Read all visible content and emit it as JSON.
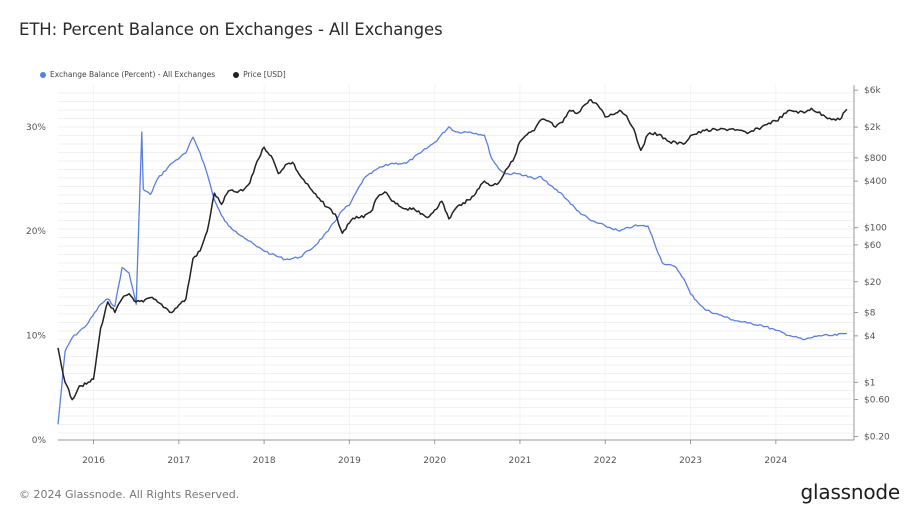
{
  "title": "ETH: Percent Balance on Exchanges - All Exchanges",
  "footer": "© 2024 Glassnode. All Rights Reserved.",
  "brand": "glassnode",
  "colors": {
    "balance": "#5b7fe0",
    "price": "#222222",
    "grid": "#eeeeee"
  },
  "chart_data": {
    "type": "line",
    "legend": [
      {
        "label": "Exchange Balance (Percent) - All Exchanges",
        "color": "#5b7fe0"
      },
      {
        "label": "Price [USD]",
        "color": "#222222"
      }
    ],
    "legend_position": "top-left",
    "x_range": [
      "2015-08",
      "2024-12"
    ],
    "x_ticks": [
      "2016",
      "2017",
      "2018",
      "2019",
      "2020",
      "2021",
      "2022",
      "2023",
      "2024"
    ],
    "y_left": {
      "label": "",
      "ticks": [
        "0%",
        "10%",
        "20%",
        "30%"
      ],
      "tick_values": [
        0,
        10,
        20,
        30
      ],
      "range": [
        0,
        34
      ]
    },
    "y_right": {
      "label": "",
      "scale": "log",
      "ticks": [
        "$0.20",
        "$0.60",
        "$1",
        "$4",
        "$8",
        "$20",
        "$60",
        "$100",
        "$400",
        "$800",
        "$2k",
        "$6k"
      ],
      "tick_values": [
        0.2,
        0.6,
        1,
        4,
        8,
        20,
        60,
        100,
        400,
        800,
        2000,
        6000
      ]
    },
    "grid": true,
    "series": [
      {
        "name": "Exchange Balance (Percent) - All Exchanges",
        "axis": "left",
        "x": [
          "2015-08",
          "2015-09",
          "2015-10",
          "2015-12",
          "2016-02",
          "2016-03",
          "2016-04",
          "2016-05",
          "2016-06",
          "2016-07",
          "2016-07-25",
          "2016-08",
          "2016-09",
          "2016-10",
          "2016-12",
          "2017-02",
          "2017-03",
          "2017-04",
          "2017-05",
          "2017-06",
          "2017-07",
          "2017-08",
          "2017-09",
          "2017-10",
          "2017-12",
          "2018-02",
          "2018-04",
          "2018-06",
          "2018-08",
          "2018-10",
          "2018-12",
          "2019-01",
          "2019-03",
          "2019-05",
          "2019-07",
          "2019-09",
          "2019-11",
          "2020-01",
          "2020-03",
          "2020-04",
          "2020-06",
          "2020-08",
          "2020-09",
          "2020-10",
          "2020-11",
          "2021-01",
          "2021-03",
          "2021-04",
          "2021-05",
          "2021-07",
          "2021-09",
          "2021-11",
          "2022-01",
          "2022-03",
          "2022-05",
          "2022-07",
          "2022-09",
          "2022-11",
          "2022-12",
          "2023-01",
          "2023-03",
          "2023-05",
          "2023-07",
          "2023-09",
          "2023-11",
          "2024-01",
          "2024-03",
          "2024-05",
          "2024-07",
          "2024-09",
          "2024-11"
        ],
        "y": [
          1.5,
          8.5,
          9.8,
          11,
          13,
          13.5,
          12.8,
          16.5,
          16,
          13,
          29.5,
          24,
          23.5,
          25,
          26.5,
          27.5,
          29,
          27.5,
          25.5,
          23,
          21.5,
          20.5,
          20,
          19.5,
          18.5,
          17.8,
          17.3,
          17.5,
          18.5,
          20,
          22,
          22.5,
          25,
          26,
          26.5,
          26.5,
          27.5,
          28.5,
          30,
          29.5,
          29.5,
          29.2,
          27,
          26,
          25.5,
          25.5,
          25,
          25.2,
          24.5,
          23.5,
          22,
          21,
          20.5,
          20,
          20.5,
          20.5,
          17,
          16.5,
          15.5,
          14,
          12.5,
          12,
          11.5,
          11.2,
          11,
          10.5,
          10,
          9.6,
          10,
          10,
          10.2
        ]
      },
      {
        "name": "Price [USD]",
        "axis": "right",
        "x": [
          "2015-08",
          "2015-09",
          "2015-10",
          "2015-11",
          "2015-12",
          "2016-01",
          "2016-02",
          "2016-03",
          "2016-04",
          "2016-05",
          "2016-06",
          "2016-07",
          "2016-08",
          "2016-09",
          "2016-10",
          "2016-12",
          "2017-01",
          "2017-02",
          "2017-03",
          "2017-04",
          "2017-05",
          "2017-06",
          "2017-07",
          "2017-08",
          "2017-09",
          "2017-10",
          "2017-11",
          "2017-12",
          "2018-01",
          "2018-02",
          "2018-03",
          "2018-04",
          "2018-05",
          "2018-06",
          "2018-08",
          "2018-09",
          "2018-11",
          "2018-12",
          "2019-01",
          "2019-02",
          "2019-03",
          "2019-04",
          "2019-05",
          "2019-06",
          "2019-07",
          "2019-08",
          "2019-09",
          "2019-10",
          "2019-11",
          "2019-12",
          "2020-01",
          "2020-02",
          "2020-03",
          "2020-04",
          "2020-05",
          "2020-06",
          "2020-07",
          "2020-08",
          "2020-09",
          "2020-10",
          "2020-11",
          "2020-12",
          "2021-01",
          "2021-02",
          "2021-03",
          "2021-04",
          "2021-05",
          "2021-06",
          "2021-07",
          "2021-08",
          "2021-09",
          "2021-10",
          "2021-11",
          "2021-12",
          "2022-01",
          "2022-02",
          "2022-03",
          "2022-04",
          "2022-05",
          "2022-06",
          "2022-07",
          "2022-08",
          "2022-10",
          "2022-12",
          "2023-01",
          "2023-03",
          "2023-05",
          "2023-07",
          "2023-09",
          "2023-11",
          "2023-12",
          "2024-01",
          "2024-03",
          "2024-05",
          "2024-06",
          "2024-08",
          "2024-10",
          "2024-11"
        ],
        "y": [
          2.8,
          1.0,
          0.6,
          0.9,
          0.95,
          1.1,
          5,
          11,
          8,
          12,
          14,
          11,
          11,
          12.5,
          11,
          8,
          10,
          12,
          40,
          50,
          90,
          280,
          200,
          300,
          290,
          300,
          380,
          720,
          1100,
          850,
          500,
          650,
          700,
          480,
          280,
          220,
          150,
          85,
          115,
          140,
          135,
          160,
          250,
          290,
          220,
          190,
          175,
          180,
          150,
          135,
          170,
          220,
          130,
          180,
          210,
          230,
          310,
          400,
          350,
          380,
          560,
          730,
          1300,
          1600,
          1800,
          2500,
          2400,
          2000,
          2300,
          3300,
          3000,
          3800,
          4500,
          3800,
          2700,
          2900,
          3300,
          2800,
          1900,
          1000,
          1600,
          1700,
          1300,
          1200,
          1550,
          1800,
          1850,
          1900,
          1650,
          2000,
          2250,
          2400,
          3300,
          3050,
          3500,
          2700,
          2500,
          3400
        ]
      }
    ]
  }
}
